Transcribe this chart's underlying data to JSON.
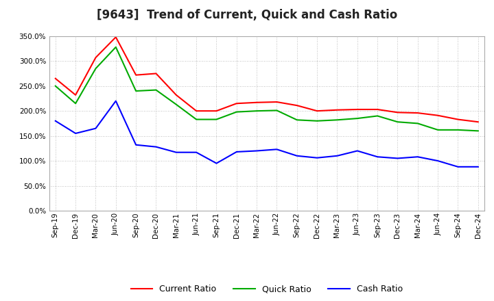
{
  "title": "[9643]  Trend of Current, Quick and Cash Ratio",
  "x_labels": [
    "Sep-19",
    "Dec-19",
    "Mar-20",
    "Jun-20",
    "Sep-20",
    "Dec-20",
    "Mar-21",
    "Jun-21",
    "Sep-21",
    "Dec-21",
    "Mar-22",
    "Jun-22",
    "Sep-22",
    "Dec-22",
    "Mar-23",
    "Jun-23",
    "Sep-23",
    "Dec-23",
    "Mar-24",
    "Jun-24",
    "Sep-24",
    "Dec-24"
  ],
  "current_ratio": [
    265,
    232,
    307,
    348,
    272,
    275,
    232,
    200,
    200,
    215,
    217,
    218,
    211,
    200,
    202,
    203,
    203,
    197,
    196,
    191,
    183,
    178
  ],
  "quick_ratio": [
    250,
    215,
    285,
    328,
    240,
    242,
    213,
    183,
    183,
    198,
    200,
    201,
    182,
    180,
    182,
    185,
    190,
    178,
    175,
    162,
    162,
    160
  ],
  "cash_ratio": [
    180,
    155,
    165,
    220,
    132,
    128,
    117,
    117,
    95,
    118,
    120,
    123,
    110,
    106,
    110,
    120,
    108,
    105,
    108,
    100,
    88,
    88
  ],
  "current_color": "#FF0000",
  "quick_color": "#00AA00",
  "cash_color": "#0000FF",
  "ylim": [
    0,
    350
  ],
  "yticks": [
    0,
    50,
    100,
    150,
    200,
    250,
    300,
    350
  ],
  "bg_color": "#FFFFFF",
  "plot_bg_color": "#FFFFFF",
  "grid_color": "#AAAAAA",
  "title_fontsize": 12,
  "tick_fontsize": 7.5,
  "legend_labels": [
    "Current Ratio",
    "Quick Ratio",
    "Cash Ratio"
  ],
  "legend_fontsize": 9
}
